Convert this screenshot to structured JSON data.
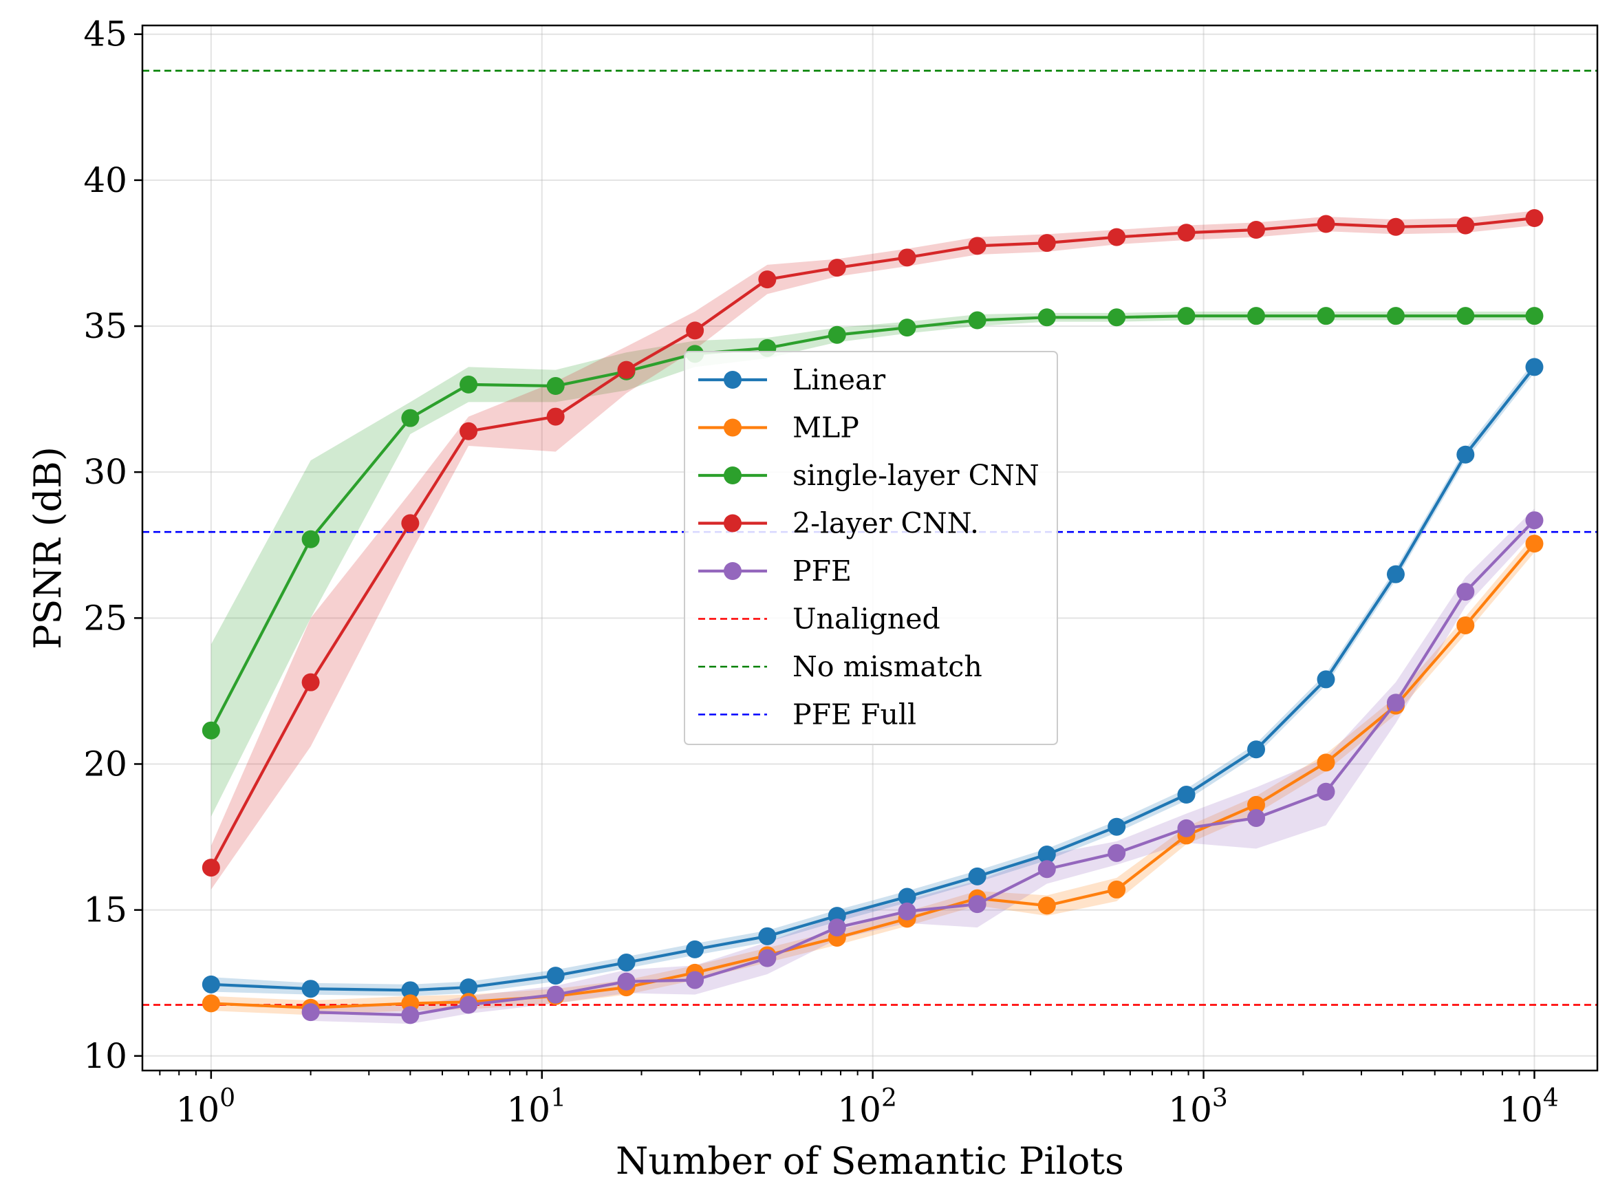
{
  "chart_data": {
    "type": "line",
    "title": "",
    "xlabel": "Number of Semantic Pilots",
    "ylabel": "PSNR (dB)",
    "xscale": "log",
    "xlim": [
      0.62,
      15500
    ],
    "ylim": [
      9.5,
      45.3
    ],
    "grid": true,
    "legend_position": "center",
    "x_ticks": [
      {
        "value": 1,
        "base": "10",
        "exp": "0"
      },
      {
        "value": 10,
        "base": "10",
        "exp": "1"
      },
      {
        "value": 100,
        "base": "10",
        "exp": "2"
      },
      {
        "value": 1000,
        "base": "10",
        "exp": "3"
      },
      {
        "value": 10000,
        "base": "10",
        "exp": "4"
      }
    ],
    "y_ticks": [
      {
        "value": 10,
        "label": "10"
      },
      {
        "value": 15,
        "label": "15"
      },
      {
        "value": 20,
        "label": "20"
      },
      {
        "value": 25,
        "label": "25"
      },
      {
        "value": 30,
        "label": "30"
      },
      {
        "value": 35,
        "label": "35"
      },
      {
        "value": 40,
        "label": "40"
      },
      {
        "value": 45,
        "label": "45"
      }
    ],
    "series": [
      {
        "name": "Linear",
        "color": "#1f77b4",
        "points": [
          [
            1,
            12.45
          ],
          [
            2,
            12.3
          ],
          [
            4,
            12.25
          ],
          [
            6,
            12.35
          ],
          [
            11,
            12.75
          ],
          [
            18,
            13.2
          ],
          [
            29,
            13.65
          ],
          [
            48,
            14.1
          ],
          [
            78,
            14.8
          ],
          [
            127,
            15.45
          ],
          [
            207,
            16.15
          ],
          [
            336,
            16.9
          ],
          [
            546,
            17.85
          ],
          [
            887,
            18.95
          ],
          [
            1442,
            20.5
          ],
          [
            2344,
            22.9
          ],
          [
            3810,
            26.5
          ],
          [
            6190,
            30.6
          ],
          [
            10000,
            33.6
          ]
        ],
        "band": [
          [
            12.2,
            12.7
          ],
          [
            12.1,
            12.5
          ],
          [
            12.05,
            12.45
          ],
          [
            12.15,
            12.55
          ],
          [
            12.55,
            12.95
          ],
          [
            13.0,
            13.4
          ],
          [
            13.45,
            13.85
          ],
          [
            13.9,
            14.3
          ],
          [
            14.6,
            15.0
          ],
          [
            15.25,
            15.65
          ],
          [
            15.95,
            16.35
          ],
          [
            16.7,
            17.1
          ],
          [
            17.65,
            18.05
          ],
          [
            18.75,
            19.15
          ],
          [
            20.3,
            20.7
          ],
          [
            22.7,
            23.1
          ],
          [
            26.3,
            26.7
          ],
          [
            30.4,
            30.8
          ],
          [
            33.4,
            33.8
          ]
        ]
      },
      {
        "name": "MLP",
        "color": "#ff7f0e",
        "points": [
          [
            1,
            11.8
          ],
          [
            2,
            11.65
          ],
          [
            4,
            11.8
          ],
          [
            6,
            11.85
          ],
          [
            11,
            12.05
          ],
          [
            18,
            12.35
          ],
          [
            29,
            12.85
          ],
          [
            48,
            13.45
          ],
          [
            78,
            14.05
          ],
          [
            127,
            14.7
          ],
          [
            207,
            15.4
          ],
          [
            336,
            15.15
          ],
          [
            546,
            15.7
          ],
          [
            887,
            17.55
          ],
          [
            1442,
            18.6
          ],
          [
            2344,
            20.05
          ],
          [
            3810,
            22.0
          ],
          [
            6190,
            24.75
          ],
          [
            10000,
            27.55
          ]
        ],
        "band": [
          [
            11.55,
            12.05
          ],
          [
            11.4,
            11.9
          ],
          [
            11.55,
            12.05
          ],
          [
            11.6,
            12.1
          ],
          [
            11.8,
            12.3
          ],
          [
            12.1,
            12.6
          ],
          [
            12.6,
            13.1
          ],
          [
            13.2,
            13.7
          ],
          [
            13.8,
            14.3
          ],
          [
            14.45,
            14.95
          ],
          [
            15.15,
            15.65
          ],
          [
            14.8,
            15.5
          ],
          [
            15.3,
            16.1
          ],
          [
            17.25,
            17.85
          ],
          [
            18.3,
            18.9
          ],
          [
            19.75,
            20.35
          ],
          [
            21.7,
            22.3
          ],
          [
            24.45,
            25.05
          ],
          [
            27.25,
            27.85
          ]
        ]
      },
      {
        "name": "single-layer CNN",
        "color": "#2ca02c",
        "points": [
          [
            1,
            21.15
          ],
          [
            2,
            27.7
          ],
          [
            4,
            31.85
          ],
          [
            6,
            33.0
          ],
          [
            11,
            32.95
          ],
          [
            18,
            33.45
          ],
          [
            29,
            34.05
          ],
          [
            48,
            34.25
          ],
          [
            78,
            34.7
          ],
          [
            127,
            34.95
          ],
          [
            207,
            35.2
          ],
          [
            336,
            35.3
          ],
          [
            546,
            35.3
          ],
          [
            887,
            35.35
          ],
          [
            1442,
            35.35
          ],
          [
            2344,
            35.35
          ],
          [
            3810,
            35.35
          ],
          [
            6190,
            35.35
          ],
          [
            10000,
            35.35
          ]
        ],
        "band": [
          [
            18.2,
            24.1
          ],
          [
            25.0,
            30.4
          ],
          [
            31.3,
            32.4
          ],
          [
            32.4,
            33.6
          ],
          [
            32.4,
            33.5
          ],
          [
            32.8,
            34.1
          ],
          [
            33.6,
            34.5
          ],
          [
            33.9,
            34.6
          ],
          [
            34.45,
            34.95
          ],
          [
            34.75,
            35.15
          ],
          [
            35.0,
            35.4
          ],
          [
            35.15,
            35.45
          ],
          [
            35.15,
            35.45
          ],
          [
            35.2,
            35.5
          ],
          [
            35.2,
            35.5
          ],
          [
            35.2,
            35.5
          ],
          [
            35.2,
            35.5
          ],
          [
            35.2,
            35.5
          ],
          [
            35.2,
            35.5
          ]
        ]
      },
      {
        "name": "2-layer CNN.",
        "color": "#d62728",
        "points": [
          [
            1,
            16.45
          ],
          [
            2,
            22.8
          ],
          [
            4,
            28.25
          ],
          [
            6,
            31.4
          ],
          [
            11,
            31.9
          ],
          [
            18,
            33.5
          ],
          [
            29,
            34.85
          ],
          [
            48,
            36.6
          ],
          [
            78,
            37.0
          ],
          [
            127,
            37.35
          ],
          [
            207,
            37.75
          ],
          [
            336,
            37.85
          ],
          [
            546,
            38.05
          ],
          [
            887,
            38.2
          ],
          [
            1442,
            38.3
          ],
          [
            2344,
            38.5
          ],
          [
            3810,
            38.4
          ],
          [
            6190,
            38.45
          ],
          [
            10000,
            38.7
          ]
        ],
        "band": [
          [
            15.7,
            17.2
          ],
          [
            20.6,
            25.0
          ],
          [
            27.2,
            29.3
          ],
          [
            30.9,
            31.9
          ],
          [
            30.7,
            33.1
          ],
          [
            32.7,
            34.3
          ],
          [
            34.2,
            35.5
          ],
          [
            36.1,
            37.1
          ],
          [
            36.7,
            37.3
          ],
          [
            37.05,
            37.65
          ],
          [
            37.45,
            38.05
          ],
          [
            37.55,
            38.15
          ],
          [
            37.8,
            38.3
          ],
          [
            37.95,
            38.45
          ],
          [
            38.05,
            38.55
          ],
          [
            38.25,
            38.75
          ],
          [
            38.15,
            38.65
          ],
          [
            38.2,
            38.7
          ],
          [
            38.45,
            38.95
          ]
        ]
      },
      {
        "name": "PFE",
        "color": "#9467bd",
        "points": [
          [
            2,
            11.5
          ],
          [
            4,
            11.4
          ],
          [
            6,
            11.75
          ],
          [
            11,
            12.1
          ],
          [
            18,
            12.55
          ],
          [
            29,
            12.6
          ],
          [
            48,
            13.35
          ],
          [
            78,
            14.4
          ],
          [
            127,
            14.95
          ],
          [
            207,
            15.2
          ],
          [
            336,
            16.4
          ],
          [
            546,
            16.95
          ],
          [
            887,
            17.8
          ],
          [
            1442,
            18.15
          ],
          [
            2344,
            19.05
          ],
          [
            3810,
            22.1
          ],
          [
            6190,
            25.9
          ],
          [
            10000,
            28.35
          ]
        ],
        "band": [
          [
            11.2,
            11.8
          ],
          [
            11.1,
            11.7
          ],
          [
            11.45,
            12.05
          ],
          [
            11.8,
            12.4
          ],
          [
            12.15,
            12.95
          ],
          [
            12.1,
            13.1
          ],
          [
            12.8,
            13.9
          ],
          [
            14.0,
            14.8
          ],
          [
            14.55,
            15.35
          ],
          [
            14.4,
            16.0
          ],
          [
            15.9,
            16.9
          ],
          [
            16.55,
            17.35
          ],
          [
            17.3,
            18.3
          ],
          [
            17.1,
            19.2
          ],
          [
            17.9,
            20.2
          ],
          [
            21.4,
            22.8
          ],
          [
            25.4,
            26.4
          ],
          [
            27.95,
            28.75
          ]
        ]
      }
    ],
    "reference_lines": [
      {
        "name": "Unaligned",
        "value": 11.75,
        "color": "#ff0000",
        "style": "dashed"
      },
      {
        "name": "No mismatch",
        "value": 43.75,
        "color": "#008000",
        "style": "dashed"
      },
      {
        "name": "PFE Full",
        "value": 27.95,
        "color": "#0000ff",
        "style": "dashed"
      }
    ]
  }
}
